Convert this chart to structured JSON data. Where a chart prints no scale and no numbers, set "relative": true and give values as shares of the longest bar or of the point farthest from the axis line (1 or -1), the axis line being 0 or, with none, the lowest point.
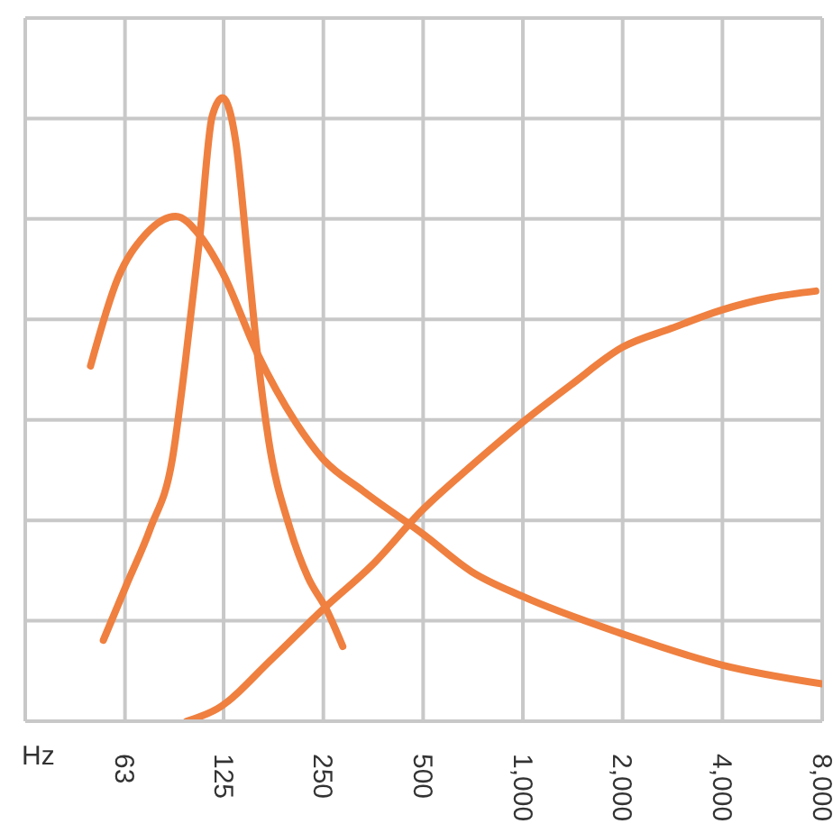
{
  "chart_data": {
    "type": "line",
    "xlabel": "Hz",
    "log": "x",
    "relative": true,
    "grid": true,
    "legend": false,
    "marker": "none",
    "line_style": "solid",
    "xlim": [
      31.5,
      8000
    ],
    "xticks": [
      63,
      125,
      250,
      500,
      {
        "value": 1000,
        "label": "1,000"
      },
      {
        "value": 2000,
        "label": "2,000"
      },
      {
        "value": 4000,
        "label": "4,000"
      },
      {
        "value": 8000,
        "label": "8,000"
      }
    ],
    "series": [
      {
        "color": "#ef8040",
        "x": [
          49.6,
          59.9,
          72.4,
          89.6,
          105.6,
          124,
          158,
          206,
          250,
          328,
          500,
          700,
          1000,
          2000,
          4000,
          8000
        ],
        "values": [
          0.57,
          0.71,
          0.78,
          0.81,
          0.78,
          0.72,
          0.59,
          0.48,
          0.42,
          0.37,
          0.3,
          0.24,
          0.2,
          0.14,
          0.09,
          0.06
        ]
      },
      {
        "color": "#ef8040",
        "x": [
          54.2,
          63.8,
          75.2,
          87.5,
          95.5,
          105.6,
          115.4,
          124,
          136,
          148,
          158,
          171,
          198,
          225,
          255,
          286
        ],
        "values": [
          0.13,
          0.22,
          0.31,
          0.42,
          0.57,
          0.77,
          0.97,
          1,
          0.93,
          0.74,
          0.59,
          0.45,
          0.31,
          0.23,
          0.18,
          0.12
        ]
      },
      {
        "color": "#ef8040",
        "x": [
          96.7,
          119.7,
          175,
          250,
          350,
          500,
          700,
          1000,
          1400,
          2000,
          2800,
          4000,
          5650,
          7650
        ],
        "values": [
          0,
          0.02,
          0.1,
          0.18,
          0.25,
          0.34,
          0.41,
          0.48,
          0.54,
          0.6,
          0.63,
          0.66,
          0.68,
          0.69
        ]
      }
    ]
  }
}
